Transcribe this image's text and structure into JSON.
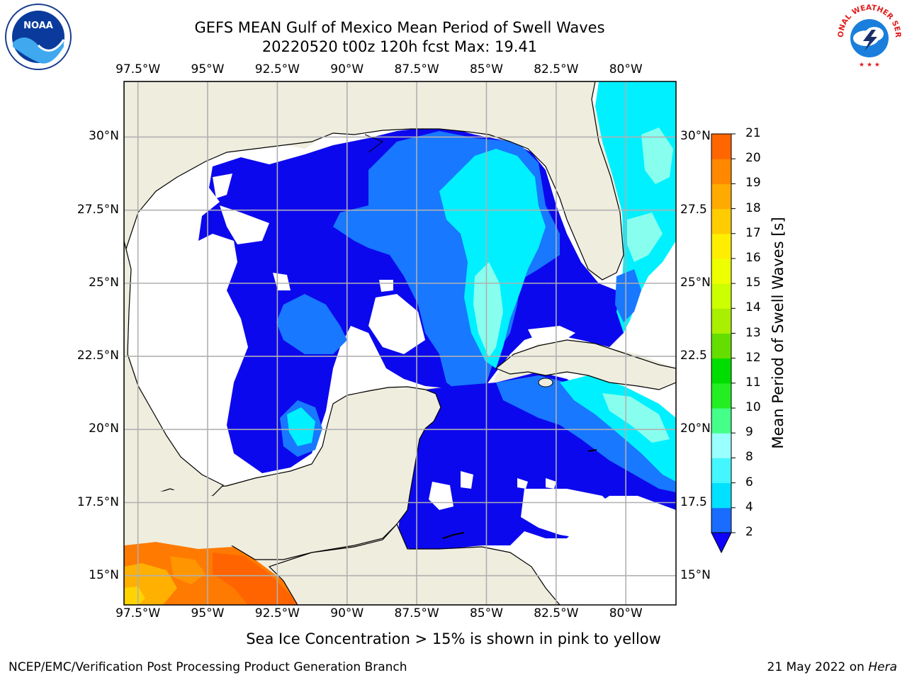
{
  "title": {
    "line1": "GEFS MEAN Gulf of Mexico Mean Period of Swell Waves",
    "line2": "20220520 t00z 120h fcst   Max: 19.41"
  },
  "axes": {
    "lon_ticks": [
      "97.5°W",
      "95°W",
      "92.5°W",
      "90°W",
      "87.5°W",
      "85°W",
      "82.5°W",
      "80°W"
    ],
    "lon_values": [
      -97.5,
      -95,
      -92.5,
      -90,
      -87.5,
      -85,
      -82.5,
      -80
    ],
    "lat_ticks_left": [
      "30°N",
      "27.5°N",
      "25°N",
      "22.5°N",
      "20°N",
      "17.5°N",
      "15°N"
    ],
    "lat_ticks_right": [
      "30°N",
      "27.5",
      "25°N",
      "22.5",
      "20°N",
      "17.5",
      "15°N"
    ],
    "lat_values": [
      30,
      27.5,
      25,
      22.5,
      20,
      17.5,
      15
    ],
    "lon_range": [
      -98,
      -78.2
    ],
    "lat_range": [
      14,
      31.9
    ],
    "grid": true
  },
  "colorbar": {
    "label": "Mean Period of Swell Waves [s]",
    "ticks": [
      "2",
      "4",
      "6",
      "8",
      "9",
      "10",
      "11",
      "12",
      "13",
      "14",
      "15",
      "16",
      "17",
      "18",
      "19",
      "20",
      "21"
    ],
    "colors": [
      "#1a6bff",
      "#00d8ff",
      "#38f0ff",
      "#66ffff",
      "#99ffff",
      "#44ee77",
      "#22dd22",
      "#00ee00",
      "#55dd00",
      "#99dd00",
      "#ccff00",
      "#eeff00",
      "#ffee00",
      "#ffcc00",
      "#ffaa00",
      "#ff8800",
      "#ff6600",
      "#ff3300",
      "#ff0000"
    ],
    "extend": "min",
    "extend_color": "#1000ff"
  },
  "colors": {
    "land": "#efedde",
    "no_data": "#ffffff",
    "level_2_4": "#0c08ee",
    "level_4_6": "#1878ff",
    "level_6_8": "#00f0ff",
    "level_8_9": "#88ffee",
    "level_16_17": "#ff8800",
    "level_17_18": "#ff6600",
    "level_15_16": "#ffbb00",
    "grid": "#b0b0b0"
  },
  "note": "Sea Ice Concentration > 15% is shown in pink to yellow",
  "footer": {
    "left": "NCEP/EMC/Verification Post Processing Product Generation Branch",
    "right_prefix": "21 May 2022 on",
    "right_host": "Hera"
  },
  "logos": {
    "left": "noaa-logo",
    "right": "nws-logo",
    "nws_text": "NATIONAL WEATHER SERVICE"
  }
}
